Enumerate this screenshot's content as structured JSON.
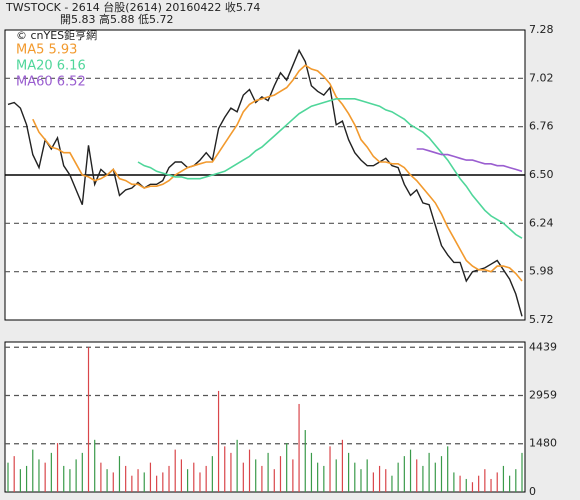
{
  "header": {
    "line1": "TWSTOCK - 2614  台股(2614) 20160422   收5.74",
    "line2": "開5.83   高5.88   低5.72",
    "source": "© cnYES鉅亨網"
  },
  "chart_data": [
    {
      "type": "line",
      "ylim": [
        5.72,
        7.28
      ],
      "yticks": [
        7.28,
        7.02,
        6.76,
        {
          "value": 6.5,
          "label": "6.50"
        },
        6.24,
        5.98,
        5.72
      ],
      "grid": "dashed",
      "reference": 6.5,
      "series": [
        {
          "color": "#222222",
          "values": [
            6.88,
            6.89,
            6.86,
            6.77,
            6.61,
            6.54,
            6.69,
            6.64,
            6.7,
            6.55,
            6.5,
            6.42,
            6.34,
            6.66,
            6.45,
            6.53,
            6.5,
            6.53,
            6.39,
            6.42,
            6.43,
            6.46,
            6.43,
            6.45,
            6.45,
            6.47,
            6.54,
            6.57,
            6.57,
            6.54,
            6.55,
            6.58,
            6.62,
            6.58,
            6.75,
            6.81,
            6.86,
            6.84,
            6.93,
            6.96,
            6.89,
            6.92,
            6.9,
            6.98,
            7.05,
            7.01,
            7.09,
            7.17,
            7.11,
            6.98,
            6.95,
            6.93,
            6.97,
            6.77,
            6.79,
            6.69,
            6.62,
            6.58,
            6.55,
            6.55,
            6.57,
            6.59,
            6.55,
            6.54,
            6.45,
            6.39,
            6.42,
            6.35,
            6.34,
            6.23,
            6.12,
            6.07,
            6.03,
            6.03,
            5.93,
            5.98,
            5.99,
            6.0,
            6.02,
            6.04,
            5.99,
            5.94,
            5.86,
            5.74
          ]
        },
        {
          "name": "MA5 5.93",
          "color": "#f29a2e",
          "values": [
            null,
            null,
            null,
            null,
            6.8,
            6.73,
            6.69,
            6.65,
            6.64,
            6.62,
            6.62,
            6.56,
            6.5,
            6.49,
            6.47,
            6.48,
            6.5,
            6.53,
            6.48,
            6.47,
            6.45,
            6.45,
            6.43,
            6.44,
            6.44,
            6.45,
            6.47,
            6.5,
            6.52,
            6.54,
            6.55,
            6.56,
            6.57,
            6.57,
            6.62,
            6.67,
            6.72,
            6.77,
            6.84,
            6.88,
            6.9,
            6.91,
            6.92,
            6.93,
            6.95,
            6.97,
            7.01,
            7.06,
            7.09,
            7.07,
            7.06,
            7.03,
            6.99,
            6.92,
            6.88,
            6.83,
            6.77,
            6.69,
            6.65,
            6.6,
            6.57,
            6.57,
            6.56,
            6.56,
            6.54,
            6.5,
            6.47,
            6.43,
            6.39,
            6.35,
            6.29,
            6.22,
            6.16,
            6.1,
            6.04,
            6.01,
            5.99,
            5.99,
            5.98,
            6.01,
            6.01,
            6.0,
            5.97,
            5.93
          ]
        },
        {
          "name": "MA20 6.16",
          "color": "#4fd69a",
          "values": [
            null,
            null,
            null,
            null,
            null,
            null,
            null,
            null,
            null,
            null,
            null,
            null,
            null,
            null,
            null,
            null,
            null,
            null,
            null,
            null,
            null,
            6.57,
            6.55,
            6.54,
            6.52,
            6.51,
            6.5,
            6.49,
            6.49,
            6.48,
            6.48,
            6.48,
            6.49,
            6.5,
            6.51,
            6.52,
            6.54,
            6.56,
            6.58,
            6.6,
            6.63,
            6.65,
            6.68,
            6.71,
            6.74,
            6.77,
            6.8,
            6.83,
            6.85,
            6.87,
            6.88,
            6.89,
            6.9,
            6.91,
            6.91,
            6.91,
            6.91,
            6.9,
            6.89,
            6.88,
            6.87,
            6.85,
            6.84,
            6.82,
            6.8,
            6.77,
            6.75,
            6.73,
            6.7,
            6.66,
            6.62,
            6.58,
            6.53,
            6.48,
            6.44,
            6.39,
            6.35,
            6.31,
            6.28,
            6.26,
            6.24,
            6.21,
            6.18,
            6.16
          ]
        },
        {
          "name": "MA60 6.52",
          "color": "#9a5ed0",
          "values": [
            null,
            null,
            null,
            null,
            null,
            null,
            null,
            null,
            null,
            null,
            null,
            null,
            null,
            null,
            null,
            null,
            null,
            null,
            null,
            null,
            null,
            null,
            null,
            null,
            null,
            null,
            null,
            null,
            null,
            null,
            null,
            null,
            null,
            null,
            null,
            null,
            null,
            null,
            null,
            null,
            null,
            null,
            null,
            null,
            null,
            null,
            null,
            null,
            null,
            null,
            null,
            null,
            null,
            null,
            null,
            null,
            null,
            null,
            null,
            null,
            null,
            null,
            null,
            null,
            null,
            null,
            6.64,
            6.64,
            6.63,
            6.62,
            6.61,
            6.61,
            6.6,
            6.59,
            6.58,
            6.58,
            6.57,
            6.56,
            6.56,
            6.55,
            6.55,
            6.54,
            6.53,
            6.52
          ]
        }
      ]
    },
    {
      "type": "bar",
      "ylim": [
        0,
        4600
      ],
      "yticks": [
        4439,
        2959,
        1480,
        0
      ],
      "grid": "dashed",
      "up_color": "#d9464a",
      "down_color": "#3a9a4a",
      "values": [
        900,
        1100,
        700,
        800,
        1300,
        1000,
        900,
        1200,
        1500,
        800,
        700,
        1000,
        1200,
        4439,
        1600,
        900,
        700,
        600,
        1100,
        800,
        500,
        700,
        600,
        900,
        500,
        600,
        800,
        1300,
        1000,
        700,
        900,
        600,
        800,
        1100,
        3100,
        1400,
        1200,
        1600,
        900,
        1300,
        1000,
        800,
        1200,
        700,
        1100,
        1500,
        1000,
        2700,
        1900,
        1200,
        900,
        800,
        1400,
        1000,
        1600,
        1200,
        900,
        700,
        1000,
        600,
        800,
        700,
        500,
        900,
        1100,
        1300,
        1000,
        800,
        1200,
        900,
        1100,
        1400,
        600,
        500,
        400,
        300,
        500,
        700,
        400,
        600,
        800,
        500,
        700,
        1200
      ]
    }
  ]
}
